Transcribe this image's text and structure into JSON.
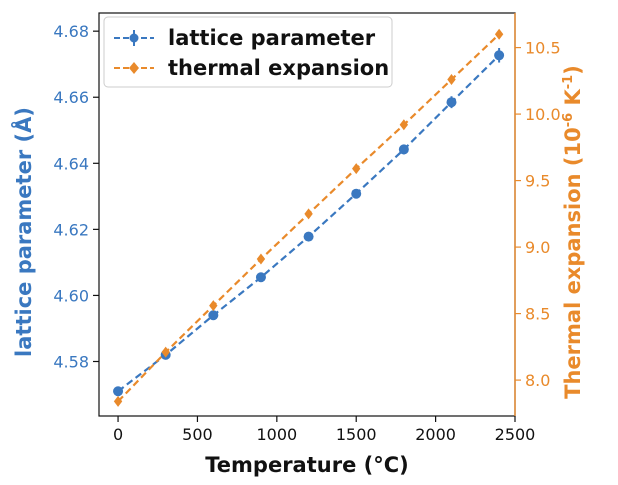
{
  "chart_data": {
    "type": "line",
    "xlabel": "Temperature (°C)",
    "ylabel_left": "lattice parameter (Å)",
    "ylabel_right_prefix": "Thermal expansion (10",
    "ylabel_right_sup1": "-6",
    "ylabel_right_mid": " K",
    "ylabel_right_sup2": "-1",
    "ylabel_right_suffix": ")",
    "xlim": [
      -120,
      2500
    ],
    "ylim_left": [
      4.5635,
      4.6855
    ],
    "ylim_right": [
      7.73,
      10.76
    ],
    "x_ticks": [
      0,
      500,
      1000,
      1500,
      2000,
      2500
    ],
    "y_left_ticks": [
      4.58,
      4.6,
      4.62,
      4.64,
      4.66,
      4.68
    ],
    "y_left_tick_labels": [
      "4.58",
      "4.60",
      "4.62",
      "4.64",
      "4.66",
      "4.68"
    ],
    "y_right_ticks": [
      8.0,
      8.5,
      9.0,
      9.5,
      10.0,
      10.5
    ],
    "y_right_tick_labels": [
      "8.0",
      "8.5",
      "9.0",
      "9.5",
      "10.0",
      "10.5"
    ],
    "legend_position": "top-left",
    "series": [
      {
        "name": "lattice parameter",
        "axis": "left",
        "color": "#3a78c0",
        "marker": "circle",
        "x": [
          0,
          300,
          600,
          900,
          1200,
          1500,
          1800,
          2100,
          2400
        ],
        "values": [
          4.571,
          4.582,
          4.594,
          4.6055,
          4.6178,
          4.6308,
          4.6442,
          4.6585,
          4.6727
        ],
        "errors": [
          0.0008,
          0.0008,
          0.0008,
          0.0008,
          0.001,
          0.0012,
          0.0015,
          0.0018,
          0.0022
        ]
      },
      {
        "name": "thermal expansion",
        "axis": "right",
        "color": "#e98a2b",
        "marker": "diamond",
        "x": [
          0,
          300,
          600,
          900,
          1200,
          1500,
          1800,
          2100,
          2400
        ],
        "values": [
          7.84,
          8.21,
          8.56,
          8.91,
          9.25,
          9.59,
          9.92,
          10.26,
          10.6
        ]
      }
    ]
  }
}
